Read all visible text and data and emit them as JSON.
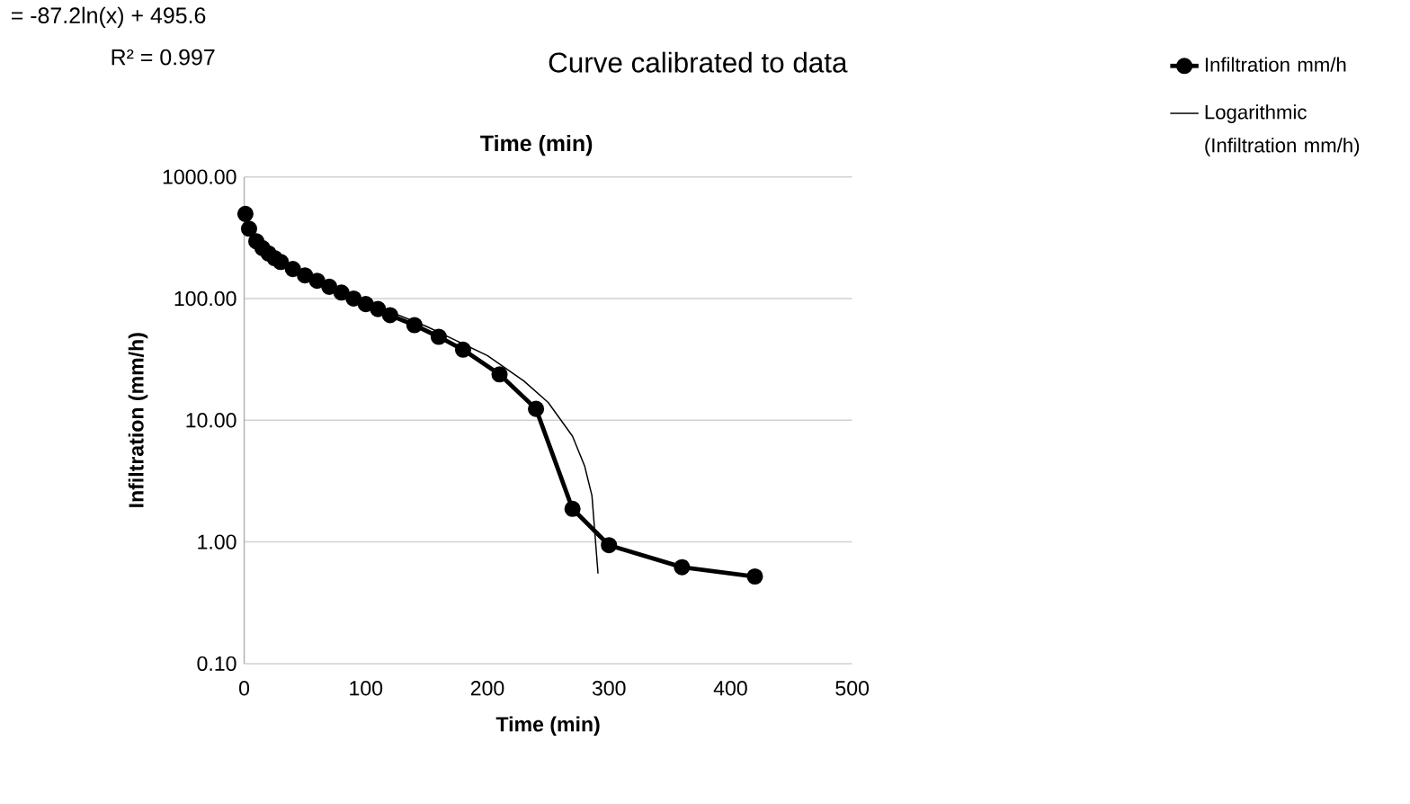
{
  "chart_data": {
    "type": "line",
    "title": "Curve calibrated to data",
    "xlabel": "Time (min)",
    "ylabel": "Infiltration (mm/h)",
    "annotations": [
      "= -87.2ln(x) + 495.6",
      "R² = 0.997",
      "Time (min)"
    ],
    "log": "y",
    "grid": "y",
    "legend": "right",
    "xlim": [
      0,
      500
    ],
    "xticks": [
      0,
      100,
      200,
      300,
      400,
      500
    ],
    "ylim": [
      0.1,
      1000
    ],
    "yticks": [
      {
        "value": 0.1,
        "label": "0.10"
      },
      {
        "value": 1,
        "label": "1.00"
      },
      {
        "value": 10,
        "label": "10.00"
      },
      {
        "value": 100,
        "label": "100.00"
      },
      {
        "value": 1000,
        "label": "1000.00"
      }
    ],
    "series": [
      {
        "name": "Infiltration mm/h",
        "color": "#000000",
        "marker": "circle",
        "x": [
          1,
          4,
          10,
          15,
          20,
          25,
          30,
          40,
          50,
          60,
          70,
          80,
          90,
          100,
          110,
          120,
          140,
          160,
          180,
          210,
          240,
          270,
          300,
          360,
          420
        ],
        "values": [
          496,
          375,
          295,
          260,
          235,
          215,
          200,
          175,
          155,
          140,
          125,
          112,
          100,
          90,
          82,
          73,
          60.5,
          48.5,
          38,
          23.8,
          12.4,
          1.87,
          0.94,
          0.62,
          0.52
        ]
      },
      {
        "name": "Logarithmic (Infiltration mm/h)",
        "color": "#000000",
        "marker": "none",
        "x": [
          1,
          10,
          50,
          100,
          150,
          200,
          230,
          250,
          270,
          280,
          286,
          291
        ],
        "values": [
          496,
          295,
          155,
          94,
          59,
          34,
          21,
          14,
          7.4,
          4.2,
          2.4,
          0.55
        ]
      }
    ]
  }
}
